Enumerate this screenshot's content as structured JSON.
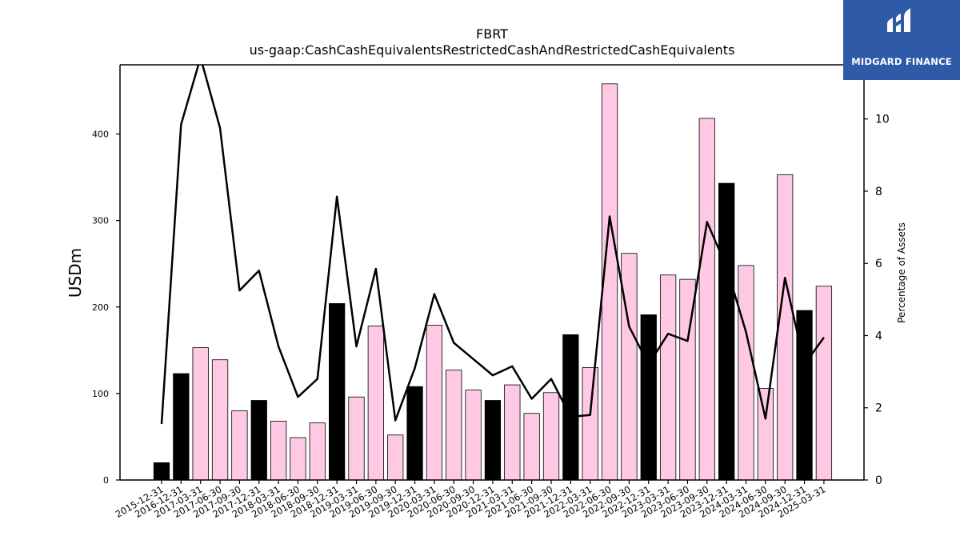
{
  "chart_data": {
    "type": "bar",
    "title": "FBRT",
    "subtitle": "us-gaap:CashCashEquivalentsRestrictedCashAndRestrictedCashEquivalents",
    "ylabel": "USDm",
    "ylabel_right": "Percentage of Assets",
    "ylim": [
      0,
      480
    ],
    "ylim_right": [
      0,
      11.5
    ],
    "yticks": [
      0,
      100,
      200,
      300,
      400
    ],
    "yticks_right": [
      0,
      2,
      4,
      6,
      8,
      10
    ],
    "categories": [
      "2015-12-31",
      "2016-12-31",
      "2017-03-31",
      "2017-06-30",
      "2017-09-30",
      "2017-12-31",
      "2018-03-31",
      "2018-06-30",
      "2018-09-30",
      "2018-12-31",
      "2019-03-31",
      "2019-06-30",
      "2019-09-30",
      "2019-12-31",
      "2020-03-31",
      "2020-06-30",
      "2020-09-30",
      "2020-12-31",
      "2021-03-31",
      "2021-06-30",
      "2021-09-30",
      "2021-12-31",
      "2022-03-31",
      "2022-06-30",
      "2022-09-30",
      "2022-12-31",
      "2023-03-31",
      "2023-06-30",
      "2023-09-30",
      "2023-12-31",
      "2024-03-31",
      "2024-06-30",
      "2024-09-30",
      "2024-12-31",
      "2025-03-31"
    ],
    "series": [
      {
        "type": "bar",
        "values": [
          20,
          123,
          153,
          139,
          80,
          92,
          68,
          49,
          66,
          204,
          96,
          178,
          52,
          108,
          179,
          127,
          104,
          92,
          110,
          77,
          101,
          168,
          130,
          458,
          262,
          191,
          237,
          232,
          418,
          343,
          248,
          106,
          353,
          196,
          224
        ],
        "colors": [
          "#000000",
          "#000000",
          "#ffc9e3",
          "#ffc9e3",
          "#ffc9e3",
          "#000000",
          "#ffc9e3",
          "#ffc9e3",
          "#ffc9e3",
          "#000000",
          "#ffc9e3",
          "#ffc9e3",
          "#ffc9e3",
          "#000000",
          "#ffc9e3",
          "#ffc9e3",
          "#ffc9e3",
          "#000000",
          "#ffc9e3",
          "#ffc9e3",
          "#ffc9e3",
          "#000000",
          "#ffc9e3",
          "#ffc9e3",
          "#ffc9e3",
          "#000000",
          "#ffc9e3",
          "#ffc9e3",
          "#ffc9e3",
          "#000000",
          "#ffc9e3",
          "#ffc9e3",
          "#ffc9e3",
          "#000000",
          "#ffc9e3"
        ]
      },
      {
        "type": "line",
        "axis": "right",
        "color": "#000000",
        "values": [
          1.55,
          9.85,
          11.7,
          9.75,
          5.25,
          5.8,
          3.7,
          2.3,
          2.8,
          7.85,
          3.7,
          5.85,
          1.65,
          3.1,
          5.15,
          3.8,
          3.35,
          2.9,
          3.15,
          2.25,
          2.8,
          1.75,
          1.8,
          7.3,
          4.25,
          3.2,
          4.05,
          3.85,
          7.15,
          5.9,
          4.1,
          1.7,
          5.6,
          3.2,
          3.95
        ]
      }
    ],
    "grid": false,
    "legend": "none"
  },
  "logo": {
    "brand": "MIDGARD FINANCE",
    "background": "#2f5aa8"
  }
}
